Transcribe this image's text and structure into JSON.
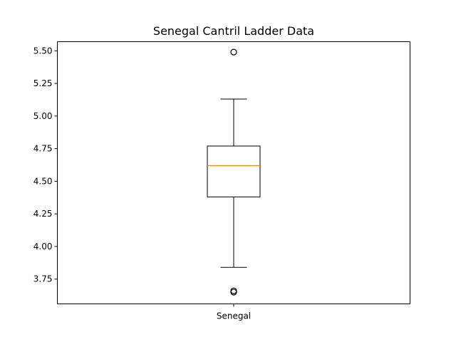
{
  "chart_data": {
    "type": "box",
    "title": "Senegal Cantril Ladder Data",
    "xlabel": "",
    "ylabel": "",
    "categories": [
      "Senegal"
    ],
    "ylim": [
      3.56,
      5.57
    ],
    "yticks": [
      3.75,
      4.0,
      4.25,
      4.5,
      4.75,
      5.0,
      5.25,
      5.5
    ],
    "ytick_labels": [
      "3.75",
      "4.00",
      "4.25",
      "4.50",
      "4.75",
      "5.00",
      "5.25",
      "5.50"
    ],
    "grid": false,
    "boxes": [
      {
        "category": "Senegal",
        "whisker_low": 3.84,
        "q1": 4.38,
        "median": 4.62,
        "q3": 4.77,
        "whisker_high": 5.13,
        "outliers": [
          5.49,
          3.66,
          3.65
        ]
      }
    ],
    "colors": {
      "box": "#000000",
      "median": "#ff7f0e",
      "outlier": "#000000"
    }
  }
}
